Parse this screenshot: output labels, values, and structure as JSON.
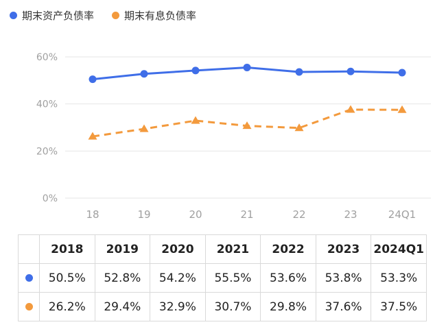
{
  "colors": {
    "series1": "#3f6ee8",
    "series2": "#f39a3d",
    "grid": "#e6e6e6",
    "axis_text": "#a0a0a0"
  },
  "chart_data": {
    "type": "line",
    "categories": [
      "18",
      "19",
      "20",
      "21",
      "22",
      "23",
      "24Q1"
    ],
    "series": [
      {
        "name": "期末资产负债率",
        "values": [
          50.5,
          52.8,
          54.2,
          55.5,
          53.6,
          53.8,
          53.3
        ],
        "style": "solid",
        "marker": "circle"
      },
      {
        "name": "期末有息负债率",
        "values": [
          26.2,
          29.4,
          32.9,
          30.7,
          29.8,
          37.6,
          37.5
        ],
        "style": "dashed",
        "marker": "triangle"
      }
    ],
    "ylim": [
      0,
      60
    ],
    "yticks": [
      "0%",
      "20%",
      "40%",
      "60%"
    ],
    "grid": true,
    "legend": "top-left"
  },
  "table": {
    "years": [
      "2018",
      "2019",
      "2020",
      "2021",
      "2022",
      "2023",
      "2024Q1"
    ],
    "rows": [
      {
        "values": [
          "50.5%",
          "52.8%",
          "54.2%",
          "55.5%",
          "53.6%",
          "53.8%",
          "53.3%"
        ]
      },
      {
        "values": [
          "26.2%",
          "29.4%",
          "32.9%",
          "30.7%",
          "29.8%",
          "37.6%",
          "37.5%"
        ]
      }
    ]
  }
}
